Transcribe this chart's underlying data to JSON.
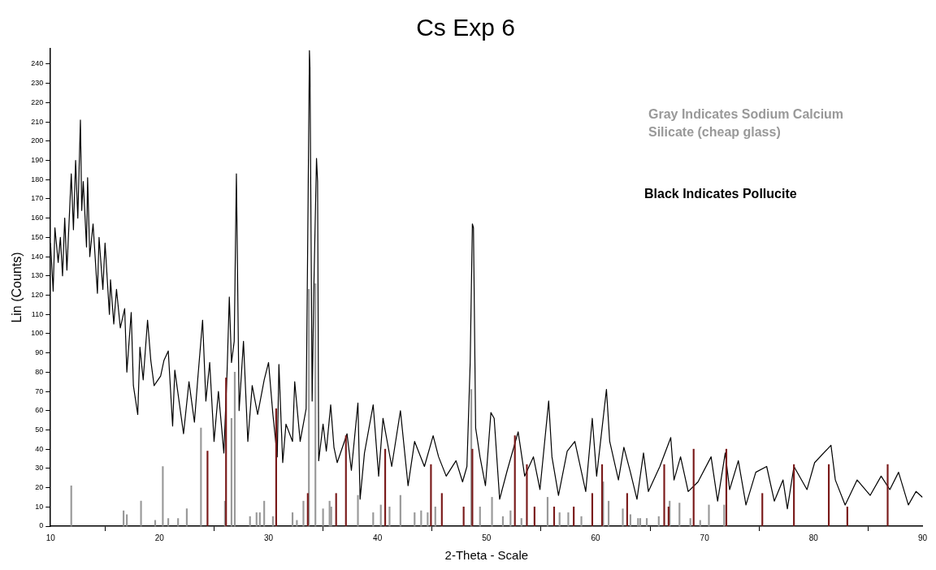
{
  "chart_data": {
    "type": "line",
    "title": "Cs Exp 6",
    "xlabel": "2-Theta - Scale",
    "ylabel": "Lin (Counts)",
    "annotations": [
      "Gray Indicates Sodium Calcium Silicate (cheap glass)",
      "Black Indicates Pollucite"
    ],
    "xlim": [
      10,
      90
    ],
    "xticks": [
      10,
      20,
      30,
      40,
      50,
      60,
      70,
      80,
      90
    ],
    "ylim": [
      0,
      248
    ],
    "yticks": [
      0,
      10,
      20,
      30,
      40,
      50,
      60,
      70,
      80,
      90,
      100,
      110,
      120,
      130,
      140,
      150,
      160,
      170,
      180,
      190,
      200,
      210,
      220,
      230,
      240
    ],
    "grid": false,
    "legend": false,
    "series": [
      {
        "color": "#000000",
        "x": [
          10.0,
          10.24,
          10.4,
          10.7,
          10.9,
          11.1,
          11.3,
          11.5,
          11.9,
          12.1,
          12.3,
          12.5,
          12.74,
          12.86,
          13.0,
          13.3,
          13.4,
          13.6,
          13.9,
          14.3,
          14.45,
          14.8,
          15.0,
          15.4,
          15.5,
          15.8,
          16.05,
          16.4,
          16.8,
          17.0,
          17.4,
          17.6,
          18.0,
          18.2,
          18.5,
          18.9,
          19.2,
          19.5,
          20.1,
          20.4,
          20.8,
          21.2,
          21.4,
          22.2,
          22.7,
          23.2,
          23.5,
          23.95,
          24.25,
          24.6,
          25.0,
          25.4,
          25.9,
          26.2,
          26.4,
          26.6,
          26.85,
          27.05,
          27.1,
          27.3,
          27.7,
          28.1,
          28.5,
          29.0,
          29.6,
          30.0,
          30.4,
          30.8,
          30.95,
          31.3,
          31.6,
          32.2,
          32.4,
          32.9,
          33.45,
          33.6,
          33.75,
          33.8,
          34.0,
          34.15,
          34.4,
          34.5,
          34.6,
          35.0,
          35.3,
          35.7,
          36.0,
          36.3,
          37.2,
          37.6,
          38.2,
          38.4,
          38.8,
          39.6,
          40.1,
          40.5,
          41.3,
          42.1,
          42.8,
          43.4,
          44.3,
          45.1,
          45.6,
          46.3,
          47.2,
          47.8,
          48.2,
          48.5,
          48.7,
          48.8,
          49.0,
          49.4,
          49.9,
          50.4,
          50.7,
          51.2,
          51.9,
          52.9,
          53.5,
          54.3,
          54.9,
          55.7,
          56.0,
          56.6,
          57.4,
          58.1,
          59.1,
          59.7,
          60.1,
          61.0,
          61.3,
          62.1,
          62.6,
          63.2,
          63.8,
          64.4,
          64.85,
          65.9,
          66.9,
          67.2,
          67.8,
          68.5,
          69.4,
          70.6,
          71.2,
          71.9,
          72.3,
          73.1,
          73.8,
          74.7,
          75.7,
          76.4,
          77.2,
          77.6,
          78.2,
          79.4,
          80.1,
          81.6,
          82.0,
          82.9,
          84.0,
          85.2,
          86.2,
          87.0,
          87.8,
          88.7,
          89.4,
          90.0
        ],
        "values": [
          147,
          122,
          155,
          137,
          150,
          130,
          160,
          133,
          183,
          154,
          190,
          160,
          211,
          164,
          179,
          145,
          181,
          140,
          157,
          121,
          150,
          123,
          147,
          110,
          128,
          105,
          123,
          103,
          113,
          80,
          111,
          73,
          58,
          93,
          76,
          107,
          86,
          73,
          78,
          86,
          91,
          52,
          81,
          48,
          75,
          54,
          76,
          107,
          65,
          85,
          44,
          70,
          38,
          81,
          119,
          85,
          96,
          183,
          159,
          60,
          96,
          44,
          73,
          58,
          76,
          85,
          58,
          36,
          84,
          33,
          53,
          44,
          75,
          44,
          61,
          152,
          247,
          238,
          65,
          122,
          191,
          179,
          34,
          53,
          39,
          63,
          41,
          33,
          48,
          29,
          64,
          14,
          38,
          63,
          26,
          56,
          31,
          60,
          21,
          44,
          31,
          47,
          36,
          26,
          34,
          23,
          31,
          85,
          157,
          155,
          51,
          36,
          21,
          59,
          56,
          14,
          29,
          49,
          26,
          36,
          19,
          65,
          36,
          16,
          39,
          44,
          18,
          56,
          26,
          71,
          44,
          24,
          41,
          28,
          14,
          38,
          18,
          31,
          46,
          24,
          36,
          18,
          23,
          36,
          13,
          38,
          19,
          34,
          11,
          28,
          31,
          13,
          24,
          9,
          31,
          19,
          33,
          42,
          24,
          11,
          24,
          16,
          26,
          19,
          28,
          11,
          18,
          15
        ]
      },
      {
        "type": "bar",
        "color": "#999999",
        "x": [
          11.9,
          16.7,
          17.0,
          18.3,
          19.6,
          20.3,
          20.8,
          21.7,
          22.5,
          23.8,
          26.0,
          26.6,
          26.9,
          28.3,
          28.9,
          29.2,
          29.6,
          30.4,
          32.2,
          32.6,
          33.2,
          33.7,
          34.3,
          35.0,
          35.6,
          35.75,
          38.2,
          39.6,
          40.3,
          41.1,
          42.1,
          43.4,
          44.0,
          44.6,
          45.3,
          48.6,
          49.4,
          50.5,
          51.5,
          52.2,
          53.2,
          55.6,
          56.7,
          57.5,
          58.7,
          60.7,
          61.2,
          62.5,
          63.2,
          63.9,
          64.1,
          64.7,
          65.8,
          66.8,
          67.7,
          68.7,
          69.6,
          70.4,
          71.8
        ],
        "values": [
          21,
          8,
          6,
          13,
          3,
          31,
          4,
          4,
          9,
          51,
          13,
          56,
          80,
          5,
          7,
          7,
          13,
          5,
          7,
          3,
          13,
          123,
          126,
          9,
          13,
          10,
          16,
          7,
          11,
          10,
          16,
          7,
          8,
          7,
          10,
          71,
          10,
          15,
          5,
          8,
          4,
          15,
          7,
          7,
          5,
          23,
          13,
          9,
          6,
          4,
          4,
          4,
          5,
          13,
          12,
          4,
          3,
          11,
          11
        ]
      },
      {
        "type": "bar",
        "color": "#7a1a1a",
        "x": [
          24.4,
          26.1,
          30.7,
          33.6,
          36.2,
          37.1,
          40.7,
          44.9,
          45.9,
          47.9,
          48.7,
          52.6,
          53.7,
          54.4,
          56.2,
          58.0,
          59.7,
          60.6,
          62.9,
          66.3,
          66.7,
          69.0,
          72.0,
          75.3,
          78.2,
          81.4,
          83.1,
          86.8
        ],
        "values": [
          39,
          77,
          61,
          17,
          17,
          47,
          40,
          32,
          17,
          10,
          40,
          47,
          32,
          10,
          10,
          10,
          17,
          32,
          17,
          32,
          10,
          40,
          40,
          17,
          32,
          32,
          10,
          32
        ]
      }
    ]
  }
}
